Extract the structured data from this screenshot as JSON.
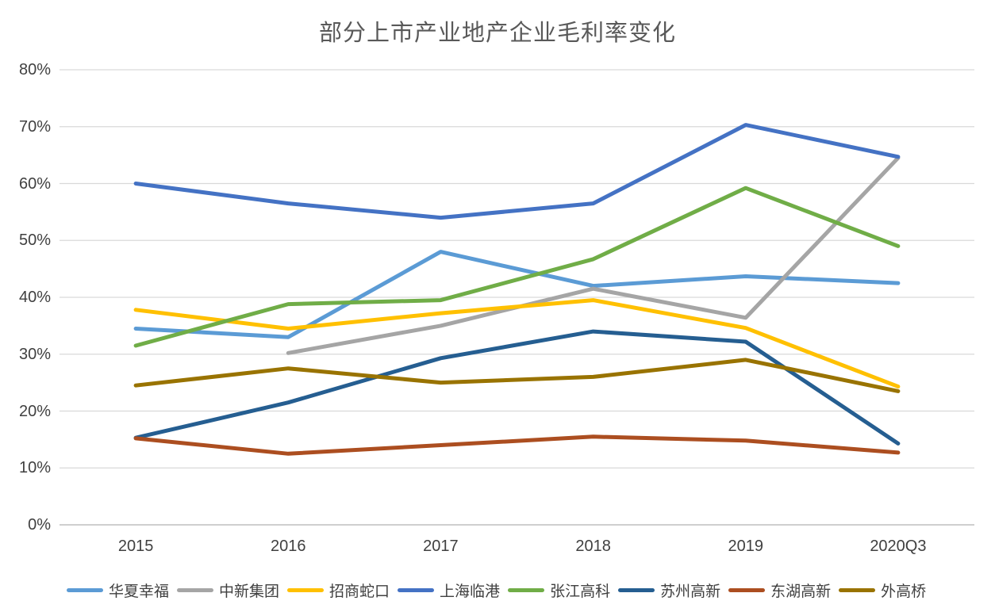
{
  "chart_data": {
    "type": "line",
    "title": "部分上市产业地产企业毛利率变化",
    "categories": [
      "2015",
      "2016",
      "2017",
      "2018",
      "2019",
      "2020Q3"
    ],
    "unit": "%",
    "ylim": [
      0,
      80
    ],
    "ytick_step": 10,
    "grid": true,
    "legend_position": "bottom",
    "colors": {
      "gridline": "#D9D9D9",
      "axis_line": "#BFBFBF",
      "tick_text": "#404040",
      "title_text": "#595959"
    },
    "series": [
      {
        "name": "华夏幸福",
        "color": "#5B9BD5",
        "values": [
          34.5,
          33.0,
          48.0,
          42.0,
          43.7,
          42.5
        ]
      },
      {
        "name": "中新集团",
        "color": "#A5A5A5",
        "values": [
          null,
          30.2,
          35.0,
          41.5,
          36.4,
          64.5
        ]
      },
      {
        "name": "招商蛇口",
        "color": "#FFC000",
        "values": [
          37.8,
          34.5,
          37.2,
          39.5,
          34.6,
          24.3
        ]
      },
      {
        "name": "上海临港",
        "color": "#4472C4",
        "values": [
          60.0,
          56.5,
          54.0,
          56.5,
          70.3,
          64.7
        ]
      },
      {
        "name": "张江高科",
        "color": "#70AD47",
        "values": [
          31.5,
          38.8,
          39.5,
          46.7,
          59.2,
          49.0
        ]
      },
      {
        "name": "苏州高新",
        "color": "#255E91",
        "values": [
          15.3,
          21.5,
          29.3,
          34.0,
          32.2,
          14.3
        ]
      },
      {
        "name": "东湖高新",
        "color": "#AC4E20",
        "values": [
          15.2,
          12.5,
          14.0,
          15.5,
          14.8,
          12.7
        ]
      },
      {
        "name": "外高桥",
        "color": "#997300",
        "values": [
          24.5,
          27.5,
          25.0,
          26.0,
          29.0,
          23.5
        ]
      }
    ]
  }
}
